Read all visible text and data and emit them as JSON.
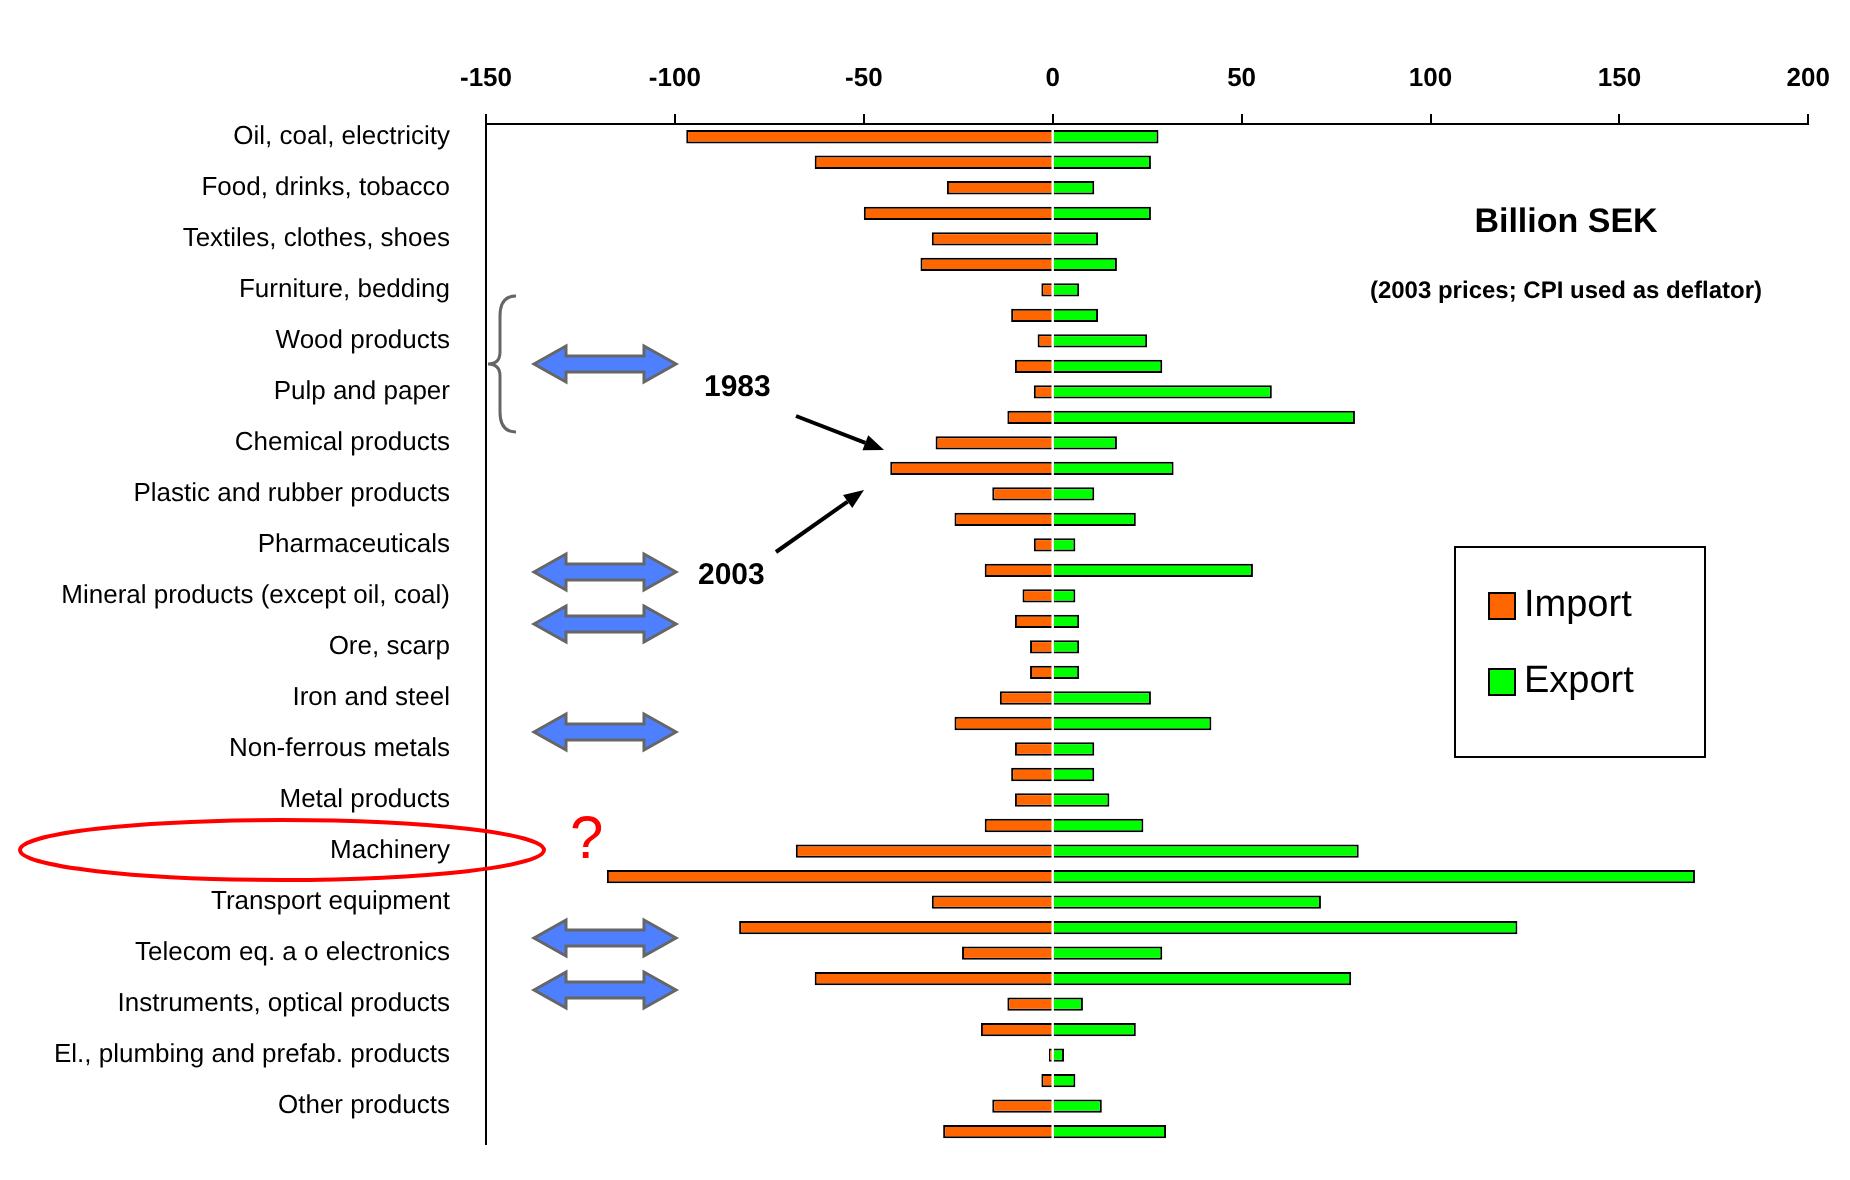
{
  "chart_data": {
    "type": "bar",
    "orientation": "horizontal",
    "stacked": true,
    "title": "Billion SEK",
    "subtitle": "(2003 prices; CPI used as deflator)",
    "categories": [
      "Oil, coal, electricity",
      null,
      "Food, drinks, tobacco",
      null,
      "Textiles, clothes, shoes",
      null,
      "Furniture, bedding",
      null,
      "Wood products",
      null,
      "Pulp and paper",
      null,
      "Chemical products",
      null,
      "Plastic and rubber products",
      null,
      "Pharmaceuticals",
      null,
      "Mineral products (except oil, coal)",
      null,
      "Ore, scarp",
      null,
      "Iron and steel",
      null,
      "Non-ferrous metals",
      null,
      "Metal products",
      null,
      "Machinery",
      null,
      "Transport equipment",
      null,
      "Telecom eq. a o electronics",
      null,
      "Instruments, optical products",
      null,
      "El., plumbing and prefab. products",
      null,
      "Other products",
      null
    ],
    "series": [
      {
        "name": "Import",
        "color": "#ff6600",
        "values": [
          -97,
          -63,
          -28,
          -50,
          -32,
          -35,
          -3,
          -11,
          -4,
          -10,
          -5,
          -12,
          -31,
          -43,
          -16,
          -26,
          -5,
          -18,
          -8,
          -10,
          -6,
          -6,
          -14,
          -26,
          -10,
          -11,
          -10,
          -18,
          -68,
          -118,
          -32,
          -83,
          -24,
          -63,
          -12,
          -19,
          -1,
          -3,
          -16,
          -29
        ]
      },
      {
        "name": "Export",
        "color": "#00ff00",
        "values": [
          28,
          26,
          11,
          26,
          12,
          17,
          7,
          12,
          25,
          29,
          58,
          80,
          17,
          32,
          11,
          22,
          6,
          53,
          6,
          7,
          7,
          7,
          26,
          42,
          11,
          11,
          15,
          24,
          81,
          170,
          71,
          123,
          29,
          79,
          8,
          22,
          3,
          6,
          13,
          30
        ]
      }
    ],
    "xlim": [
      -150,
      200
    ],
    "xticks": [
      -150,
      -100,
      -50,
      0,
      50,
      100,
      150,
      200
    ],
    "grid": false,
    "legend": "right",
    "annotations": [
      "1983",
      "2003",
      "?"
    ]
  }
}
